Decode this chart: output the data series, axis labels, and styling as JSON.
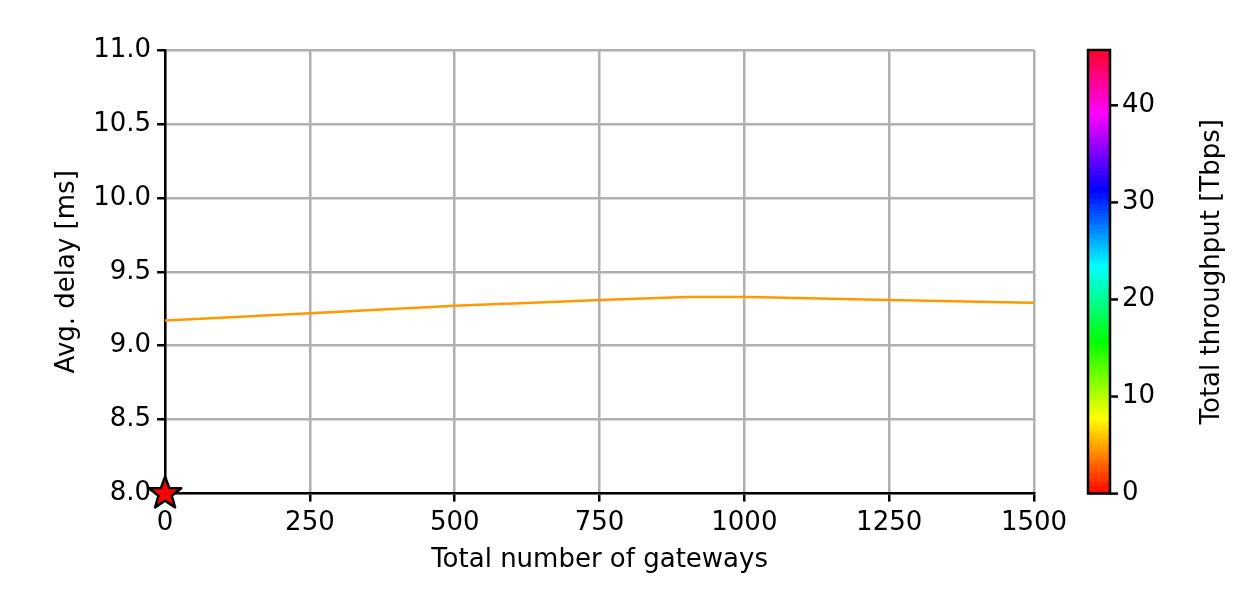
{
  "chart_data": {
    "type": "line",
    "xlabel": "Total number of gateways",
    "ylabel": "Avg. delay [ms]",
    "clabel": "Total throughput [Tbps]",
    "series": [
      {
        "x": [
          0,
          250,
          500,
          750,
          900,
          1000,
          1250,
          1500
        ],
        "values": [
          9.17,
          9.22,
          9.27,
          9.31,
          9.33,
          9.33,
          9.31,
          9.29
        ],
        "color": "#ff9900"
      },
      {
        "type": "scatter",
        "x": [
          0
        ],
        "values": [
          8.0
        ],
        "color": "#ff0000",
        "marker": "star"
      }
    ],
    "xlim": [
      0,
      1500
    ],
    "xticks": [
      0,
      250,
      500,
      750,
      1000,
      1250,
      1500
    ],
    "ylim": [
      8,
      11
    ],
    "yticks": [
      {
        "value": 8,
        "label": "8.0"
      },
      {
        "value": 8.5,
        "label": "8.5"
      },
      {
        "value": 9,
        "label": "9.0"
      },
      {
        "value": 9.5,
        "label": "9.5"
      },
      {
        "value": 10,
        "label": "10.0"
      },
      {
        "value": 10.5,
        "label": "10.5"
      },
      {
        "value": 11,
        "label": "11.0"
      }
    ],
    "clim": [
      0,
      45.7
    ],
    "cticks": [
      0,
      10,
      20,
      30,
      40
    ],
    "grid": true,
    "legend": false
  }
}
